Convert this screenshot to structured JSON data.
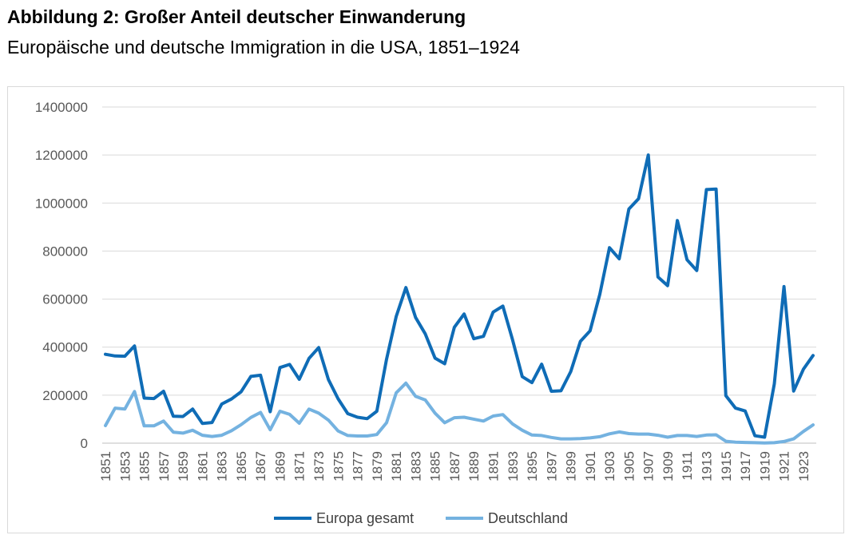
{
  "header": {
    "title": "Abbildung 2: Großer Anteil deutscher Einwanderung",
    "subtitle": "Europäische und deutsche Immigration in die USA, 1851–1924"
  },
  "chart_data": {
    "type": "line",
    "title": "Abbildung 2: Großer Anteil deutscher Einwanderung",
    "subtitle": "Europäische und deutsche Immigration in die USA, 1851–1924",
    "xlabel": "",
    "ylabel": "",
    "ylim": [
      0,
      1400000
    ],
    "yticks": [
      0,
      200000,
      400000,
      600000,
      800000,
      1000000,
      1200000,
      1400000
    ],
    "ytick_labels": [
      "0",
      "200000",
      "400000",
      "600000",
      "800000",
      "1000000",
      "1200000",
      "1400000"
    ],
    "x_tick_labels": [
      "1851",
      "1853",
      "1855",
      "1857",
      "1859",
      "1861",
      "1863",
      "1865",
      "1867",
      "1869",
      "1871",
      "1873",
      "1875",
      "1877",
      "1879",
      "1881",
      "1883",
      "1885",
      "1887",
      "1889",
      "1891",
      "1893",
      "1895",
      "1897",
      "1899",
      "1901",
      "1903",
      "1905",
      "1907",
      "1909",
      "1911",
      "1913",
      "1915",
      "1917",
      "1919",
      "1921",
      "1923"
    ],
    "grid": true,
    "legend_position": "bottom",
    "x": [
      1851,
      1852,
      1853,
      1854,
      1855,
      1856,
      1857,
      1858,
      1859,
      1860,
      1861,
      1862,
      1863,
      1864,
      1865,
      1866,
      1867,
      1868,
      1869,
      1870,
      1871,
      1872,
      1873,
      1874,
      1875,
      1876,
      1877,
      1878,
      1879,
      1880,
      1881,
      1882,
      1883,
      1884,
      1885,
      1886,
      1887,
      1888,
      1889,
      1890,
      1891,
      1892,
      1893,
      1894,
      1895,
      1896,
      1897,
      1898,
      1899,
      1900,
      1901,
      1902,
      1903,
      1904,
      1905,
      1906,
      1907,
      1908,
      1909,
      1910,
      1911,
      1912,
      1913,
      1914,
      1915,
      1916,
      1917,
      1918,
      1919,
      1920,
      1921,
      1922,
      1923,
      1924
    ],
    "series": [
      {
        "name": "Europa gesamt",
        "color": "#0f6cb6",
        "values": [
          370000,
          363000,
          362000,
          405000,
          188000,
          186000,
          216000,
          112000,
          111000,
          142000,
          82000,
          86000,
          163000,
          184000,
          214000,
          278000,
          283000,
          131000,
          315000,
          328000,
          266000,
          353000,
          398000,
          265000,
          185000,
          123000,
          108000,
          102000,
          133000,
          350000,
          528000,
          648000,
          523000,
          455000,
          354000,
          331000,
          483000,
          538000,
          435000,
          445000,
          546000,
          571000,
          430000,
          277000,
          252000,
          329000,
          216000,
          218000,
          298000,
          424000,
          468000,
          620000,
          814000,
          768000,
          975000,
          1018000,
          1200000,
          692000,
          656000,
          927000,
          764000,
          719000,
          1056000,
          1058000,
          198000,
          146000,
          134000,
          31000,
          25000,
          247000,
          652000,
          217000,
          308000,
          365000
        ]
      },
      {
        "name": "Deutschland",
        "color": "#74b2e0",
        "values": [
          73000,
          146000,
          142000,
          215000,
          72000,
          72000,
          92000,
          46000,
          42000,
          54000,
          33000,
          28000,
          33000,
          52000,
          77000,
          107000,
          128000,
          56000,
          133000,
          120000,
          83000,
          142000,
          125000,
          96000,
          51000,
          32000,
          30000,
          30000,
          36000,
          85000,
          210000,
          250000,
          195000,
          180000,
          125000,
          85000,
          106000,
          108000,
          100000,
          92000,
          113000,
          119000,
          80000,
          54000,
          34000,
          32000,
          24000,
          18000,
          18000,
          19000,
          22000,
          27000,
          39000,
          47000,
          40000,
          38000,
          38000,
          33000,
          25000,
          32000,
          32000,
          28000,
          34000,
          35000,
          8000,
          4000,
          3000,
          2000,
          1000,
          2000,
          7000,
          18000,
          49000,
          76000
        ]
      }
    ]
  }
}
